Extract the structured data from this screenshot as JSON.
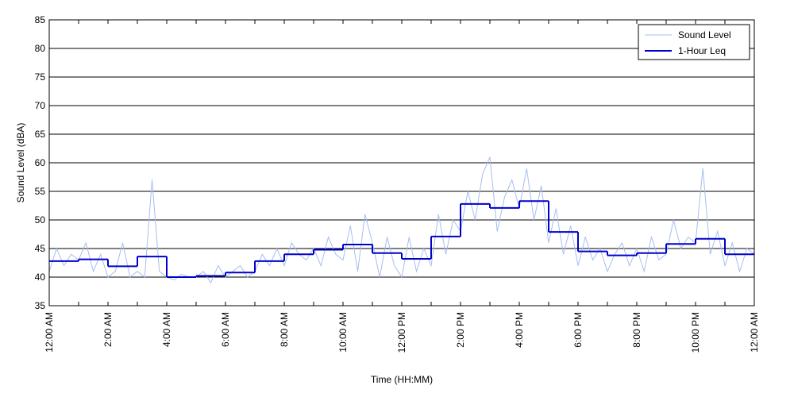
{
  "chart_data": {
    "type": "line",
    "xlabel": "Time (HH:MM)",
    "ylabel": "Sound Level (dBA)",
    "xlim": [
      0,
      24
    ],
    "xticks": [
      {
        "value": 0,
        "label": "12:00 AM"
      },
      {
        "value": 2,
        "label": "2:00 AM"
      },
      {
        "value": 4,
        "label": "4:00 AM"
      },
      {
        "value": 6,
        "label": "6:00 AM"
      },
      {
        "value": 8,
        "label": "8:00 AM"
      },
      {
        "value": 10,
        "label": "10:00 AM"
      },
      {
        "value": 12,
        "label": "12:00 PM"
      },
      {
        "value": 14,
        "label": "2:00 PM"
      },
      {
        "value": 16,
        "label": "4:00 PM"
      },
      {
        "value": 18,
        "label": "6:00 PM"
      },
      {
        "value": 20,
        "label": "8:00 PM"
      },
      {
        "value": 22,
        "label": "10:00 PM"
      },
      {
        "value": 24,
        "label": "12:00 AM"
      }
    ],
    "ylim": [
      35,
      85
    ],
    "yticks": [
      35,
      40,
      45,
      50,
      55,
      60,
      65,
      70,
      75,
      80,
      85
    ],
    "grid": true,
    "legend": "upper right",
    "series": [
      {
        "name": "Sound Level",
        "color": "#a6bef2",
        "x": [
          0,
          0.25,
          0.5,
          0.75,
          1,
          1.25,
          1.5,
          1.75,
          2,
          2.25,
          2.5,
          2.75,
          3,
          3.25,
          3.5,
          3.75,
          4,
          4.25,
          4.5,
          4.75,
          5,
          5.25,
          5.5,
          5.75,
          6,
          6.25,
          6.5,
          6.75,
          7,
          7.25,
          7.5,
          7.75,
          8,
          8.25,
          8.5,
          8.75,
          9,
          9.25,
          9.5,
          9.75,
          10,
          10.25,
          10.5,
          10.75,
          11,
          11.25,
          11.5,
          11.75,
          12,
          12.25,
          12.5,
          12.75,
          13,
          13.25,
          13.5,
          13.75,
          14,
          14.25,
          14.5,
          14.75,
          15,
          15.25,
          15.5,
          15.75,
          16,
          16.25,
          16.5,
          16.75,
          17,
          17.25,
          17.5,
          17.75,
          18,
          18.25,
          18.5,
          18.75,
          19,
          19.25,
          19.5,
          19.75,
          20,
          20.25,
          20.5,
          20.75,
          21,
          21.25,
          21.5,
          21.75,
          22,
          22.25,
          22.5,
          22.75,
          23,
          23.25,
          23.5,
          23.75,
          24
        ],
        "values": [
          41,
          45,
          42,
          44,
          43,
          46,
          41,
          44,
          40,
          41,
          46,
          40,
          41,
          40,
          57,
          41,
          40,
          39.5,
          40.5,
          40,
          40,
          41,
          39,
          42,
          40,
          41,
          42,
          40,
          41,
          44,
          42,
          45,
          42,
          46,
          44,
          43,
          45,
          42,
          47,
          44,
          43,
          49,
          41,
          51,
          46,
          40,
          47,
          42,
          40,
          47,
          41,
          45,
          42,
          51,
          44,
          50,
          48,
          55,
          50,
          58,
          61,
          48,
          54,
          57,
          52,
          59,
          50,
          56,
          46,
          52,
          44,
          49,
          42,
          47,
          43,
          45,
          41,
          44,
          46,
          42,
          45,
          41,
          47,
          43,
          44,
          50,
          45,
          47,
          46,
          59,
          44,
          48,
          42,
          46,
          41,
          45,
          44
        ]
      },
      {
        "name": "1-Hour Leq",
        "color": "#0000cc",
        "step": "post",
        "x": [
          0,
          1,
          2,
          3,
          4,
          5,
          6,
          7,
          8,
          9,
          10,
          11,
          12,
          13,
          14,
          15,
          16,
          17,
          18,
          19,
          20,
          21,
          22,
          23
        ],
        "values": [
          42.8,
          43.1,
          41.9,
          43.6,
          40.0,
          40.2,
          40.8,
          42.8,
          44.0,
          44.8,
          45.7,
          44.2,
          43.2,
          47.1,
          52.8,
          52.1,
          53.3,
          47.9,
          44.5,
          43.8,
          44.2,
          45.8,
          46.7,
          44.0
        ]
      }
    ]
  }
}
